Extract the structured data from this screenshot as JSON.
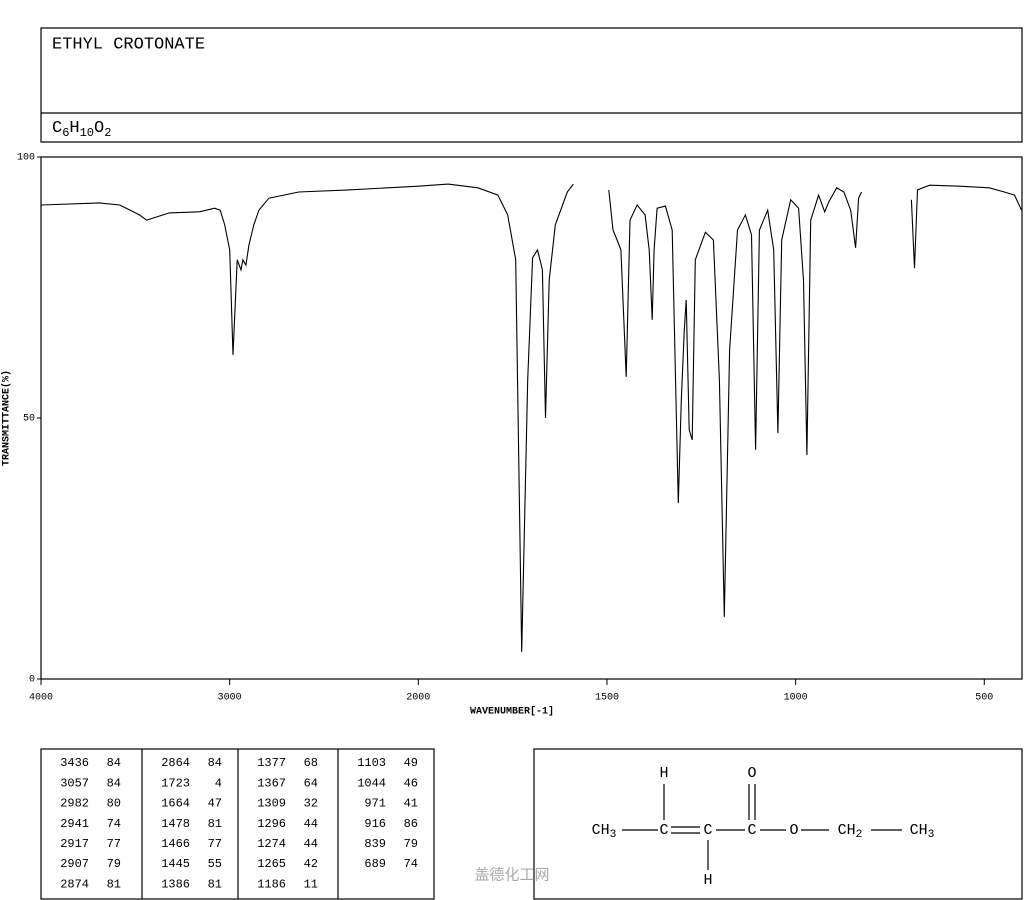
{
  "chart_data": {
    "type": "line",
    "title": "ETHYL CROTONATE",
    "formula": [
      "C",
      "6",
      "H",
      "10",
      "O",
      "2"
    ],
    "xlabel": "WAVENUMBER[-1]",
    "ylabel": "TRANSMITTANCE(%)",
    "color": "#000000",
    "xlim": [
      4000,
      400
    ],
    "xticks": [
      4000,
      3000,
      2000,
      1500,
      1000,
      500
    ],
    "ylim": [
      0,
      100
    ],
    "yticks": [
      0,
      50,
      100
    ],
    "x": [
      4000,
      3690,
      3583,
      3478,
      3440,
      3320,
      3160,
      3080,
      3050,
      3026,
      3000,
      2982,
      2960,
      2940,
      2930,
      2914,
      2898,
      2872,
      2845,
      2792,
      2634,
      2370,
      2000,
      1921,
      1842,
      1789,
      1763,
      1742,
      1726,
      1710,
      1697,
      1684,
      1671,
      1663,
      1653,
      1637,
      1605,
      1589,
      1540,
      1495,
      1484,
      1473,
      1463,
      1449,
      1439,
      1420,
      1399,
      1388,
      1380,
      1375,
      1367,
      1345,
      1327,
      1311,
      1303,
      1295,
      1290,
      1282,
      1274,
      1266,
      1239,
      1218,
      1202,
      1189,
      1175,
      1154,
      1133,
      1117,
      1106,
      1096,
      1074,
      1058,
      1047,
      1037,
      1013,
      992,
      979,
      970,
      960,
      939,
      923,
      912,
      891,
      872,
      854,
      841,
      833,
      825,
      760,
      693,
      685,
      677,
      645,
      565,
      487,
      447,
      420,
      401
    ],
    "values": [
      90.8,
      91.2,
      90.8,
      88.9,
      87.9,
      89.3,
      89.5,
      90.2,
      89.8,
      87.0,
      82.2,
      62.1,
      80.3,
      78.4,
      80.3,
      79.3,
      83.1,
      87.0,
      89.8,
      92.1,
      93.3,
      93.7,
      94.4,
      94.8,
      94.1,
      92.7,
      88.9,
      80.3,
      5.2,
      57.3,
      80.7,
      82.2,
      78.4,
      50.0,
      76.4,
      87.0,
      93.3,
      94.8,
      null,
      93.7,
      86.0,
      84.1,
      82.2,
      57.9,
      87.9,
      90.8,
      88.9,
      82.2,
      68.8,
      82.2,
      90.2,
      90.6,
      86.0,
      33.7,
      53.4,
      66.9,
      72.6,
      47.7,
      45.8,
      80.3,
      85.6,
      84.1,
      57.3,
      11.9,
      63.0,
      86.0,
      88.9,
      85.1,
      43.9,
      86.0,
      89.8,
      82.2,
      47.1,
      84.1,
      91.8,
      90.2,
      76.4,
      42.9,
      87.9,
      92.7,
      89.5,
      91.4,
      94.1,
      93.3,
      89.8,
      82.6,
      92.1,
      93.3,
      null,
      91.8,
      78.7,
      93.7,
      94.6,
      94.4,
      94.1,
      93.3,
      92.7,
      89.8
    ]
  },
  "peak_table": [
    [
      [
        3436,
        84
      ],
      [
        3057,
        84
      ],
      [
        2982,
        80
      ],
      [
        2941,
        74
      ],
      [
        2917,
        77
      ],
      [
        2907,
        79
      ],
      [
        2874,
        81
      ]
    ],
    [
      [
        2864,
        84
      ],
      [
        1723,
        4
      ],
      [
        1664,
        47
      ],
      [
        1478,
        81
      ],
      [
        1466,
        77
      ],
      [
        1445,
        55
      ],
      [
        1386,
        81
      ]
    ],
    [
      [
        1377,
        68
      ],
      [
        1367,
        64
      ],
      [
        1309,
        32
      ],
      [
        1296,
        44
      ],
      [
        1274,
        44
      ],
      [
        1265,
        42
      ],
      [
        1186,
        11
      ]
    ],
    [
      [
        1103,
        49
      ],
      [
        1044,
        46
      ],
      [
        971,
        41
      ],
      [
        916,
        86
      ],
      [
        839,
        79
      ],
      [
        689,
        74
      ]
    ]
  ],
  "structure": {
    "atoms": [
      "CH3",
      "C",
      "C",
      "C",
      "O",
      "CH2",
      "CH3",
      "H",
      "O",
      "H"
    ]
  },
  "watermark": "盖德化工网"
}
